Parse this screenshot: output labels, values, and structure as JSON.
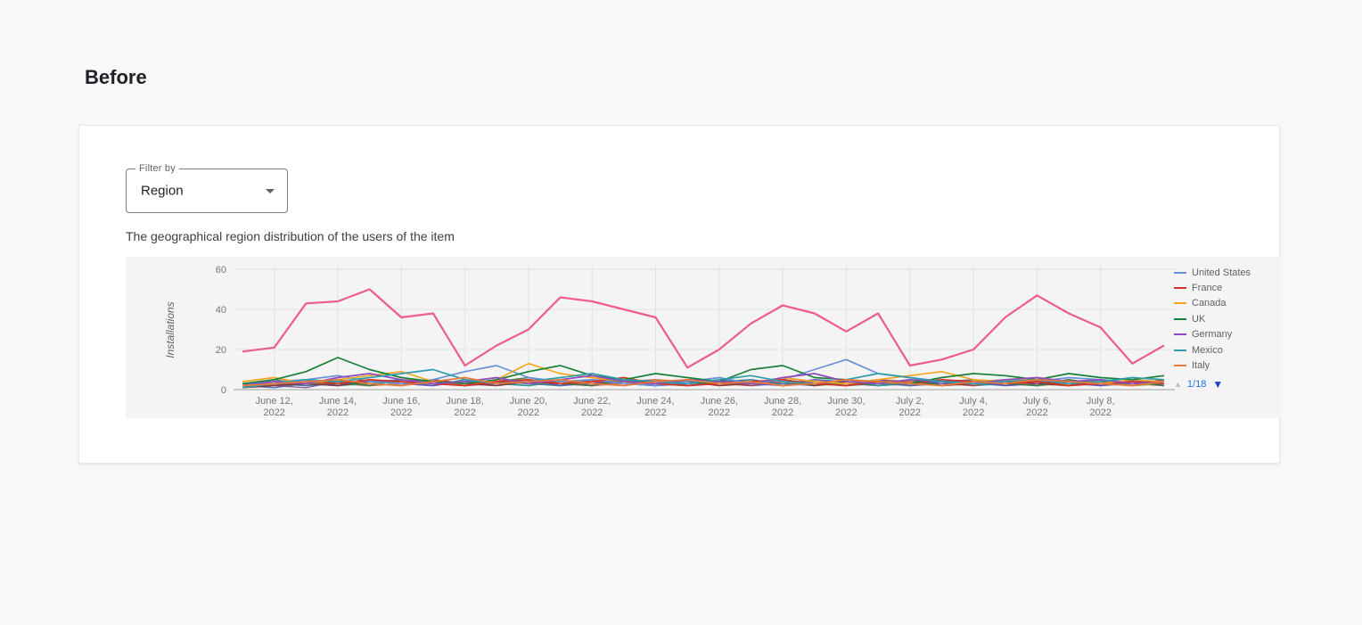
{
  "page": {
    "title": "Before"
  },
  "card": {
    "filter": {
      "label": "Filter by",
      "value": "Region"
    },
    "description": "The geographical region distribution of the users of the item"
  },
  "legend": {
    "pagination": {
      "page": "1/18",
      "prev_icon": "▲",
      "next_icon": "▼"
    }
  },
  "chart_data": {
    "type": "line",
    "title": "",
    "xlabel": "",
    "ylabel": "Installations",
    "ylim": [
      0,
      60
    ],
    "yticks": [
      0,
      20,
      40,
      60
    ],
    "grid": true,
    "legend_position": "right",
    "x": [
      "June 11, 2022",
      "June 12, 2022",
      "June 13, 2022",
      "June 14, 2022",
      "June 15, 2022",
      "June 16, 2022",
      "June 17, 2022",
      "June 18, 2022",
      "June 19, 2022",
      "June 20, 2022",
      "June 21, 2022",
      "June 22, 2022",
      "June 23, 2022",
      "June 24, 2022",
      "June 25, 2022",
      "June 26, 2022",
      "June 27, 2022",
      "June 28, 2022",
      "June 29, 2022",
      "June 30, 2022",
      "July 1, 2022",
      "July 2, 2022",
      "July 3, 2022",
      "July 4, 2022",
      "July 5, 2022",
      "July 6, 2022",
      "July 7, 2022",
      "July 8, 2022",
      "July 9, 2022",
      "July 10, 2022"
    ],
    "x_tick_labels": [
      "June 12, 2022",
      "June 14, 2022",
      "June 16, 2022",
      "June 18, 2022",
      "June 20, 2022",
      "June 22, 2022",
      "June 24, 2022",
      "June 26, 2022",
      "June 28, 2022",
      "June 30, 2022",
      "July 2, 2022",
      "July 4, 2022",
      "July 6, 2022",
      "July 8, 2022"
    ],
    "series": [
      {
        "name": "United States",
        "color": "#6991d6",
        "in_legend": true,
        "values": [
          3,
          4,
          5,
          7,
          4,
          3,
          5,
          9,
          12,
          6,
          4,
          5,
          3,
          2,
          4,
          6,
          3,
          5,
          10,
          15,
          8,
          6,
          4,
          3,
          5,
          4,
          6,
          5,
          4,
          3
        ]
      },
      {
        "name": "France",
        "color": "#d93025",
        "in_legend": true,
        "values": [
          2,
          3,
          4,
          3,
          5,
          4,
          3,
          2,
          4,
          5,
          3,
          4,
          6,
          3,
          2,
          3,
          4,
          5,
          3,
          2,
          4,
          3,
          5,
          4,
          3,
          4,
          2,
          3,
          4,
          3
        ]
      },
      {
        "name": "Canada",
        "color": "#f4a623",
        "in_legend": true,
        "values": [
          4,
          6,
          3,
          5,
          7,
          9,
          4,
          3,
          5,
          13,
          8,
          6,
          4,
          3,
          5,
          4,
          3,
          6,
          4,
          3,
          5,
          7,
          9,
          5,
          4,
          6,
          4,
          3,
          5,
          4
        ]
      },
      {
        "name": "UK",
        "color": "#188038",
        "in_legend": true,
        "values": [
          3,
          5,
          9,
          16,
          10,
          6,
          4,
          3,
          5,
          9,
          12,
          7,
          5,
          8,
          6,
          4,
          10,
          12,
          6,
          5,
          4,
          3,
          6,
          8,
          7,
          5,
          8,
          6,
          5,
          7
        ]
      },
      {
        "name": "Germany",
        "color": "#8f4bbd",
        "in_legend": true,
        "values": [
          2,
          4,
          3,
          6,
          8,
          5,
          3,
          4,
          6,
          3,
          5,
          7,
          4,
          3,
          5,
          4,
          3,
          6,
          8,
          4,
          3,
          5,
          4,
          3,
          5,
          6,
          4,
          5,
          3,
          4
        ]
      },
      {
        "name": "Mexico",
        "color": "#2e9cab",
        "in_legend": true,
        "values": [
          1,
          3,
          5,
          4,
          6,
          8,
          10,
          5,
          3,
          4,
          6,
          8,
          5,
          4,
          3,
          5,
          7,
          4,
          3,
          5,
          8,
          6,
          4,
          3,
          4,
          5,
          3,
          4,
          6,
          5
        ]
      },
      {
        "name": "Italy",
        "color": "#e8793a",
        "in_legend": true,
        "values": [
          2,
          3,
          4,
          5,
          3,
          2,
          4,
          6,
          3,
          4,
          5,
          3,
          2,
          4,
          5,
          3,
          4,
          2,
          3,
          5,
          4,
          3,
          2,
          4,
          3,
          5,
          4,
          3,
          2,
          4
        ]
      },
      {
        "name": "",
        "color": "#ee5c8e",
        "in_legend": false,
        "values": [
          19,
          21,
          43,
          44,
          50,
          36,
          38,
          12,
          22,
          30,
          46,
          44,
          40,
          36,
          11,
          20,
          33,
          42,
          38,
          29,
          38,
          12,
          15,
          20,
          36,
          47,
          38,
          31,
          13,
          22
        ]
      }
    ],
    "background_series": [
      {
        "color": "#3366cc",
        "values": [
          2,
          1,
          3,
          2,
          4,
          3,
          2,
          5,
          3,
          2,
          4,
          3,
          5,
          2,
          3,
          4,
          2,
          3,
          5,
          4,
          2,
          3,
          4,
          2,
          3,
          5,
          3,
          2,
          4,
          3
        ]
      },
      {
        "color": "#b23d3d",
        "values": [
          1,
          2,
          4,
          3,
          2,
          5,
          4,
          2,
          3,
          5,
          2,
          4,
          3,
          2,
          5,
          3,
          2,
          4,
          3,
          2,
          5,
          4,
          3,
          2,
          4,
          3,
          2,
          5,
          3,
          2
        ]
      },
      {
        "color": "#7c5295",
        "values": [
          3,
          2,
          1,
          4,
          3,
          2,
          5,
          3,
          2,
          4,
          3,
          2,
          4,
          5,
          2,
          3,
          4,
          2,
          5,
          3,
          2,
          4,
          3,
          5,
          2,
          3,
          4,
          2,
          3,
          5
        ]
      },
      {
        "color": "#27a08a",
        "values": [
          2,
          3,
          5,
          2,
          3,
          4,
          2,
          5,
          3,
          2,
          4,
          5,
          3,
          2,
          4,
          3,
          5,
          2,
          3,
          4,
          2,
          3,
          5,
          3,
          2,
          4,
          3,
          5,
          2,
          3
        ]
      },
      {
        "color": "#a0a030",
        "values": [
          1,
          3,
          2,
          4,
          2,
          3,
          5,
          2,
          4,
          3,
          2,
          5,
          3,
          4,
          2,
          3,
          4,
          5,
          2,
          3,
          4,
          2,
          3,
          4,
          5,
          2,
          3,
          4,
          2,
          3
        ]
      },
      {
        "color": "#5e49c0",
        "values": [
          2,
          4,
          3,
          2,
          5,
          3,
          2,
          4,
          3,
          5,
          2,
          3,
          4,
          2,
          3,
          5,
          3,
          2,
          4,
          3,
          5,
          2,
          3,
          4,
          2,
          3,
          5,
          2,
          4,
          3
        ]
      },
      {
        "color": "#d96b2f",
        "values": [
          3,
          2,
          4,
          5,
          2,
          3,
          4,
          2,
          5,
          3,
          4,
          2,
          3,
          5,
          4,
          2,
          3,
          4,
          2,
          5,
          3,
          4,
          2,
          3,
          4,
          2,
          5,
          3,
          2,
          4
        ]
      },
      {
        "color": "#3d6fa0",
        "values": [
          2,
          3,
          2,
          3,
          4,
          5,
          3,
          2,
          4,
          3,
          2,
          5,
          4,
          3,
          2,
          4,
          5,
          3,
          2,
          4,
          3,
          2,
          4,
          5,
          3,
          2,
          4,
          3,
          5,
          2
        ]
      },
      {
        "color": "#8a2f2f",
        "values": [
          1,
          2,
          3,
          2,
          4,
          3,
          5,
          3,
          2,
          4,
          3,
          2,
          5,
          3,
          4,
          2,
          3,
          5,
          2,
          4,
          3,
          5,
          2,
          3,
          4,
          3,
          2,
          4,
          3,
          5
        ]
      },
      {
        "color": "#2d7d46",
        "values": [
          2,
          5,
          3,
          4,
          2,
          5,
          3,
          2,
          4,
          6,
          3,
          2,
          5,
          3,
          2,
          4,
          3,
          6,
          4,
          2,
          3,
          5,
          2,
          4,
          3,
          2,
          5,
          3,
          4,
          2
        ]
      }
    ]
  }
}
